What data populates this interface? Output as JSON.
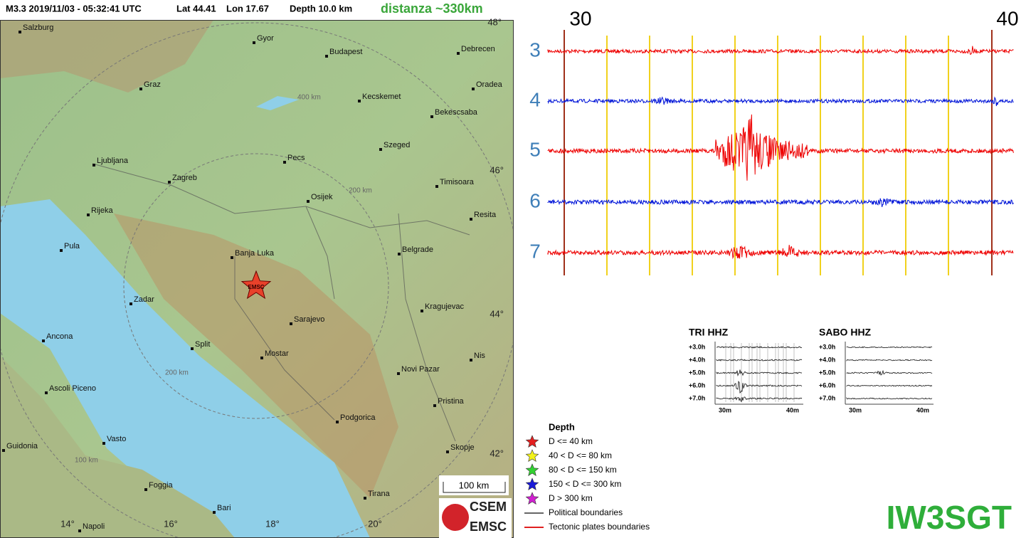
{
  "header": {
    "event": "M3.3  2019/11/03 - 05:32:41 UTC",
    "lat": "Lat 44.41",
    "lon": "Lon 17.67",
    "depth": "Depth  10.0 km",
    "distance": "distanza ~330km"
  },
  "map": {
    "cities": [
      "Salzburg",
      "Gyor",
      "Budapest",
      "Debrecen",
      "Graz",
      "Oradea",
      "Kecskemet",
      "Bekescsaba",
      "Szeged",
      "Ljubljana",
      "Pecs",
      "Zagreb",
      "Timisoara",
      "Osijek",
      "Rijeka",
      "Resita",
      "Pula",
      "Banja Luka",
      "Belgrade",
      "Zadar",
      "Kragujevac",
      "Sarajevo",
      "Ancona",
      "Split",
      "Mostar",
      "Nis",
      "Novi Pazar",
      "Ascoli Piceno",
      "Pristina",
      "Podgorica",
      "Vasto",
      "Guidonia",
      "Skopje",
      "Foggia",
      "Tirana",
      "Bari",
      "Napoli"
    ],
    "lon_labels": [
      "14°",
      "16°",
      "18°",
      "20°"
    ],
    "lat_labels": [
      "48°",
      "46°",
      "44°",
      "42°"
    ],
    "ring_labels": [
      "400 km",
      "200 km",
      "200 km",
      "100 km"
    ],
    "epicenter_label": "EMSC",
    "scale_bar": "100 km",
    "logo": [
      "CSEM",
      "EMSC"
    ]
  },
  "seismogram": {
    "minute_labels": [
      "30",
      "40"
    ],
    "hour_labels": [
      "3",
      "4",
      "5",
      "6",
      "7"
    ]
  },
  "thumbnails": [
    {
      "title": "TRI HHZ",
      "rows": [
        "+3.0h",
        "+4.0h",
        "+5.0h",
        "+6.0h",
        "+7.0h"
      ],
      "x_labels": [
        "30m",
        "40m"
      ]
    },
    {
      "title": "SABO HHZ",
      "rows": [
        "+3.0h",
        "+4.0h",
        "+5.0h",
        "+6.0h",
        "+7.0h"
      ],
      "x_labels": [
        "30m",
        "40m"
      ]
    }
  ],
  "legend": {
    "title": "Depth",
    "items": [
      "D <= 40 km",
      "40 < D <= 80 km",
      "80 < D <= 150 km",
      "150 < D <= 300 km",
      "D > 300 km",
      "Political boundaries",
      "Tectonic plates boundaries"
    ]
  },
  "callsign": "IW3SGT"
}
